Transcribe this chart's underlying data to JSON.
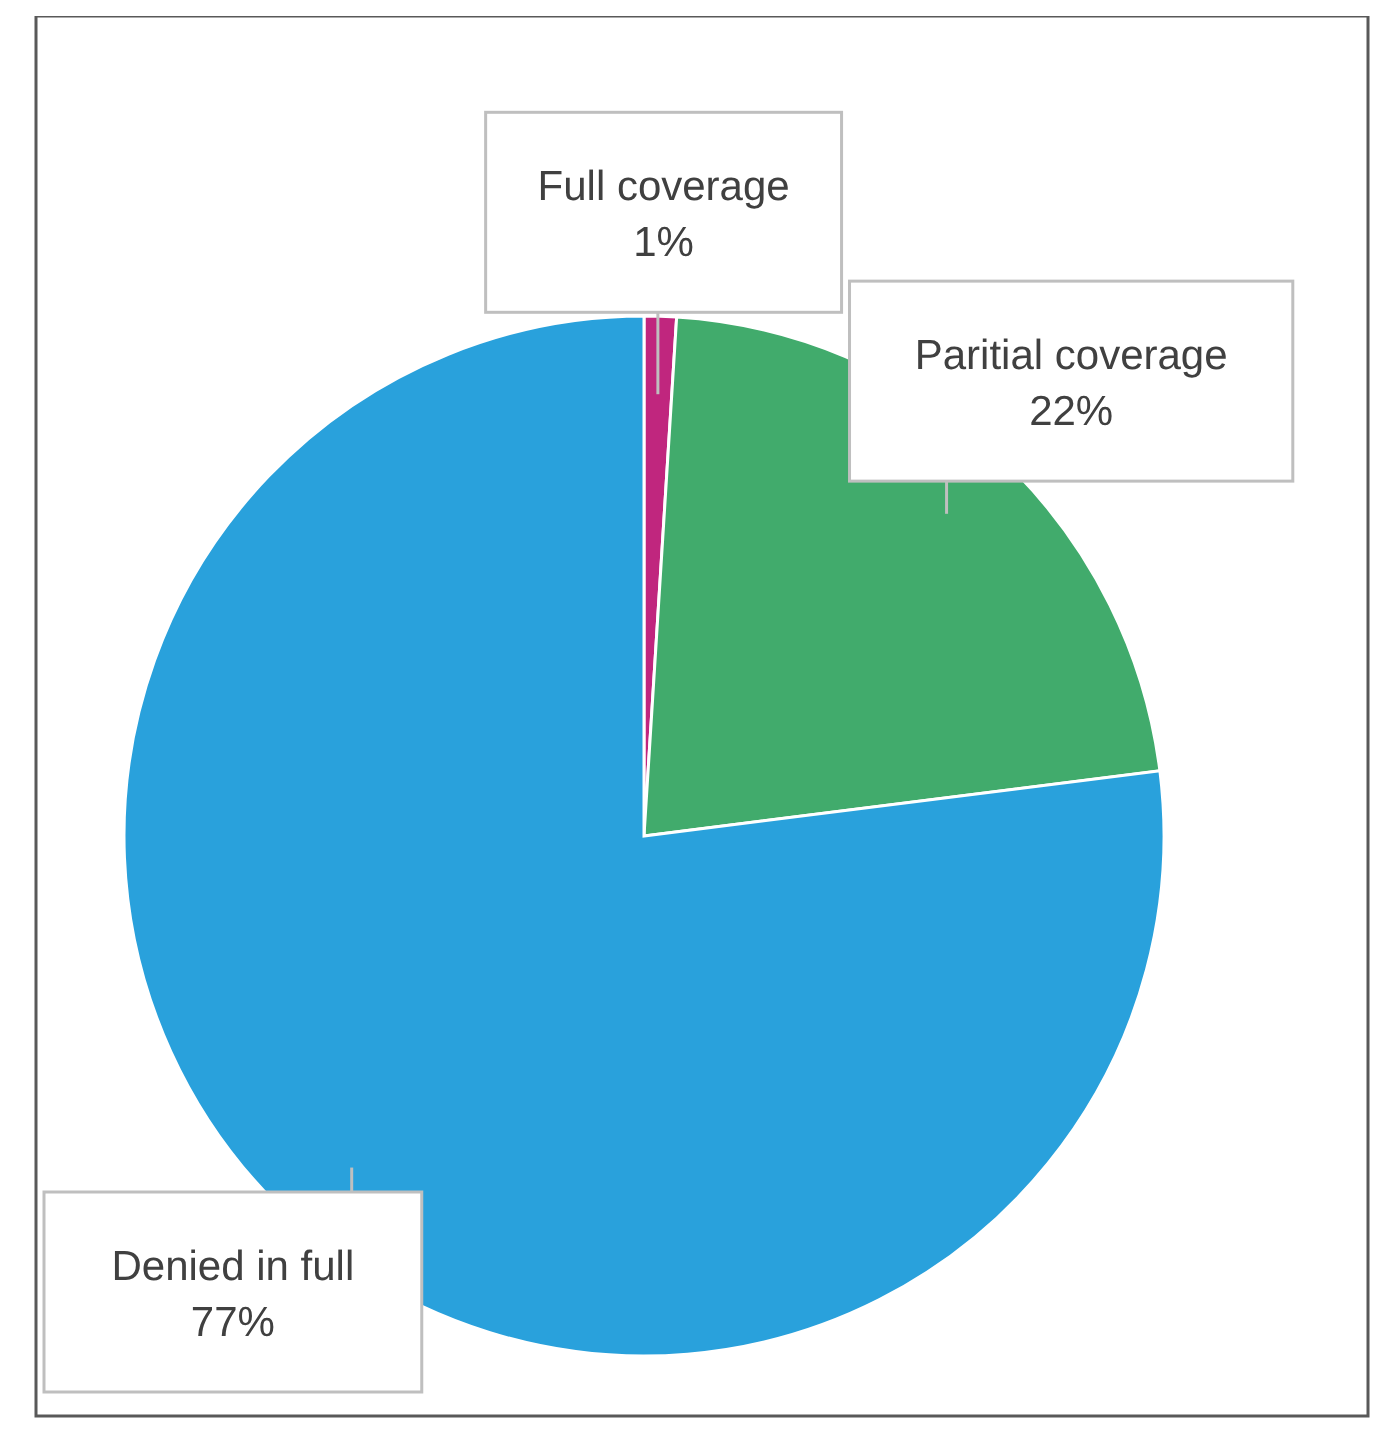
{
  "chart_data": {
    "type": "pie",
    "categories": [
      "Full coverage",
      "Paritial coverage",
      "Denied in full"
    ],
    "values": [
      1,
      22,
      77
    ],
    "colors": [
      "#c0267e",
      "#41ab6c",
      "#29a1dc"
    ],
    "value_labels": [
      "1%",
      "22%",
      "77%"
    ]
  }
}
